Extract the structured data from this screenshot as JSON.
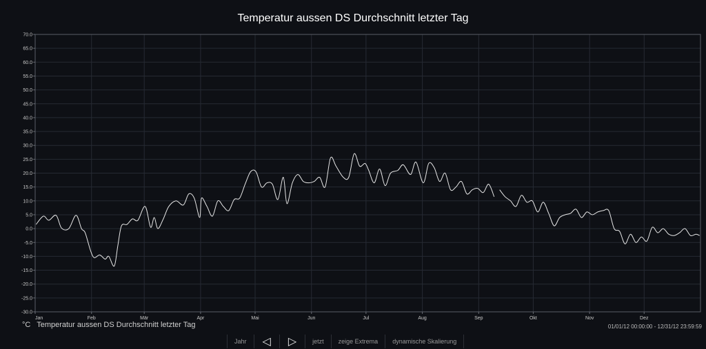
{
  "chart_data": {
    "type": "line",
    "title": "Temperatur aussen DS Durchschnitt letzter Tag",
    "xlabel": "",
    "ylabel": "",
    "ylim": [
      -30,
      70
    ],
    "y_ticks": [
      "70.0",
      "65.0",
      "60.0",
      "55.0",
      "50.0",
      "45.0",
      "40.0",
      "35.0",
      "30.0",
      "25.0",
      "20.0",
      "15.0",
      "10.0",
      "5.0",
      "0.0",
      "-5.0",
      "-10.0",
      "-15.0",
      "-20.0",
      "-25.0",
      "-30.0"
    ],
    "x_ticks": [
      "Jan",
      "Feb",
      "Mär",
      "Apr",
      "Mai",
      "Jun",
      "Jul",
      "Aug",
      "Sep",
      "Okt",
      "Nov",
      "Dez"
    ],
    "xlim": [
      "2012-01-01",
      "2012-12-31"
    ],
    "grid": true,
    "legend": "bottom-left",
    "line_color": "#e8e8e8",
    "series": [
      {
        "name": "Temperatur aussen DS Durchschnitt letzter Tag",
        "x": [
          "2012-01-01",
          "2012-01-05",
          "2012-01-08",
          "2012-01-12",
          "2012-01-15",
          "2012-01-19",
          "2012-01-23",
          "2012-01-26",
          "2012-01-28",
          "2012-01-31",
          "2012-02-02",
          "2012-02-05",
          "2012-02-08",
          "2012-02-10",
          "2012-02-13",
          "2012-02-15",
          "2012-02-17",
          "2012-02-20",
          "2012-02-23",
          "2012-02-26",
          "2012-03-01",
          "2012-03-04",
          "2012-03-06",
          "2012-03-08",
          "2012-03-11",
          "2012-03-14",
          "2012-03-18",
          "2012-03-22",
          "2012-03-25",
          "2012-03-28",
          "2012-03-31",
          "2012-04-01",
          "2012-04-04",
          "2012-04-07",
          "2012-04-10",
          "2012-04-13",
          "2012-04-16",
          "2012-04-19",
          "2012-04-22",
          "2012-04-25",
          "2012-04-28",
          "2012-05-01",
          "2012-05-04",
          "2012-05-07",
          "2012-05-10",
          "2012-05-13",
          "2012-05-16",
          "2012-05-18",
          "2012-05-21",
          "2012-05-24",
          "2012-05-27",
          "2012-05-30",
          "2012-06-02",
          "2012-06-05",
          "2012-06-08",
          "2012-06-11",
          "2012-06-14",
          "2012-06-18",
          "2012-06-21",
          "2012-06-24",
          "2012-06-27",
          "2012-06-30",
          "2012-07-02",
          "2012-07-05",
          "2012-07-08",
          "2012-07-11",
          "2012-07-14",
          "2012-07-18",
          "2012-07-21",
          "2012-07-25",
          "2012-07-28",
          "2012-08-01",
          "2012-08-04",
          "2012-08-07",
          "2012-08-10",
          "2012-08-13",
          "2012-08-16",
          "2012-08-19",
          "2012-08-22",
          "2012-08-25",
          "2012-08-28",
          "2012-08-31",
          "2012-09-03",
          "2012-09-06",
          "2012-09-09",
          "2012-09-12",
          "2012-09-15",
          "2012-09-18",
          "2012-09-21",
          "2012-09-24",
          "2012-09-27",
          "2012-09-30",
          "2012-10-03",
          "2012-10-06",
          "2012-10-09",
          "2012-10-12",
          "2012-10-15",
          "2012-10-18",
          "2012-10-21",
          "2012-10-24",
          "2012-10-27",
          "2012-10-30",
          "2012-11-02",
          "2012-11-05",
          "2012-11-08",
          "2012-11-11",
          "2012-11-14",
          "2012-11-17",
          "2012-11-20",
          "2012-11-23",
          "2012-11-26",
          "2012-11-29",
          "2012-12-02",
          "2012-12-05",
          "2012-12-08",
          "2012-12-11",
          "2012-12-14",
          "2012-12-17",
          "2012-12-20",
          "2012-12-23",
          "2012-12-26",
          "2012-12-29",
          "2012-12-31"
        ],
        "values": [
          1.5,
          4.5,
          3.0,
          4.8,
          0.2,
          0.0,
          4.8,
          0.0,
          -1.5,
          -8.0,
          -10.5,
          -9.5,
          -11.0,
          -10.0,
          -13.5,
          -6.0,
          1.0,
          1.5,
          3.5,
          3.0,
          8.0,
          0.5,
          4.0,
          0.0,
          3.5,
          8.0,
          10.0,
          8.5,
          12.5,
          11.0,
          4.0,
          11.0,
          8.0,
          4.5,
          10.0,
          8.0,
          6.5,
          10.5,
          11.0,
          16.0,
          20.5,
          20.5,
          15.0,
          16.5,
          16.0,
          10.5,
          18.5,
          9.0,
          16.5,
          19.5,
          17.0,
          16.5,
          17.0,
          18.5,
          15.0,
          25.5,
          22.5,
          18.5,
          18.5,
          27.0,
          22.5,
          23.5,
          21.0,
          16.5,
          21.5,
          15.5,
          20.0,
          21.0,
          23.0,
          19.5,
          24.0,
          16.5,
          23.5,
          22.0,
          17.0,
          20.0,
          14.0,
          15.0,
          17.0,
          12.5,
          14.0,
          14.5,
          13.0,
          16.0,
          11.5,
          14.0,
          11.5,
          10.0,
          8.0,
          12.0,
          9.5,
          10.0,
          6.0,
          9.5,
          5.5,
          1.0,
          4.0,
          5.0,
          5.5,
          7.0,
          4.0,
          6.0,
          5.0,
          6.0,
          6.5,
          6.5,
          0.0,
          -1.0,
          -5.5,
          -2.0,
          -5.0,
          -3.0,
          -4.5,
          0.5,
          -1.5,
          0.0,
          -2.0,
          -2.5,
          -1.5,
          0.0,
          -2.5,
          -2.0,
          -2.5
        ],
        "gap_after": "2012-09-09"
      }
    ]
  },
  "legend": {
    "unit": "°C",
    "label": "Temperatur aussen DS Durchschnitt letzter Tag"
  },
  "range_label": "01/01/12 00:00:00 - 12/31/12 23:59:59",
  "toolbar": {
    "year": "Jahr",
    "prev_icon": "triangle-left-icon",
    "next_icon": "triangle-right-icon",
    "now": "jetzt",
    "extrema": "zeige Extrema",
    "dynamic": "dynamische Skalierung"
  }
}
